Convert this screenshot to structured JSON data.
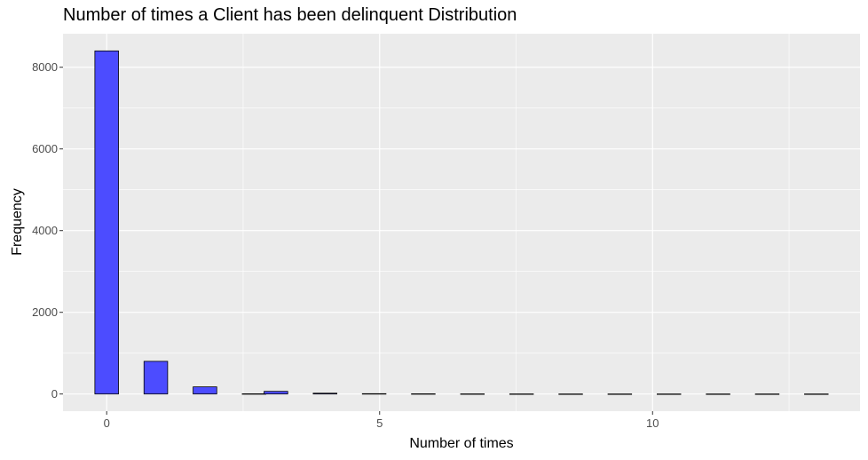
{
  "chart_data": {
    "type": "bar",
    "title": "Number of times a Client has been delinquent Distribution",
    "xlabel": "Number of times",
    "ylabel": "Frequency",
    "x_ticks": [
      0,
      5,
      10
    ],
    "y_ticks": [
      0,
      2000,
      4000,
      6000,
      8000
    ],
    "xlim": [
      -0.8,
      13.8
    ],
    "ylim": [
      -420,
      8820
    ],
    "bin_width": 0.4333,
    "bars": [
      {
        "x": 0.0,
        "count": 8400
      },
      {
        "x": 0.9,
        "count": 800
      },
      {
        "x": 1.8,
        "count": 175
      },
      {
        "x": 2.7,
        "count": 5
      },
      {
        "x": 3.1,
        "count": 65
      },
      {
        "x": 4.0,
        "count": 20
      },
      {
        "x": 4.9,
        "count": 8
      },
      {
        "x": 5.8,
        "count": 5
      },
      {
        "x": 6.7,
        "count": 3
      },
      {
        "x": 7.6,
        "count": 2
      },
      {
        "x": 8.5,
        "count": 1
      },
      {
        "x": 9.4,
        "count": 1
      },
      {
        "x": 10.3,
        "count": 1
      },
      {
        "x": 11.2,
        "count": 1
      },
      {
        "x": 12.1,
        "count": 1
      },
      {
        "x": 13.0,
        "count": 1
      }
    ],
    "fill_color": "#4c4cff",
    "bar_outline_color": "#000000",
    "panel_background": "#ebebeb",
    "grid_color": "#ffffff",
    "grid": true,
    "legend": "none"
  }
}
